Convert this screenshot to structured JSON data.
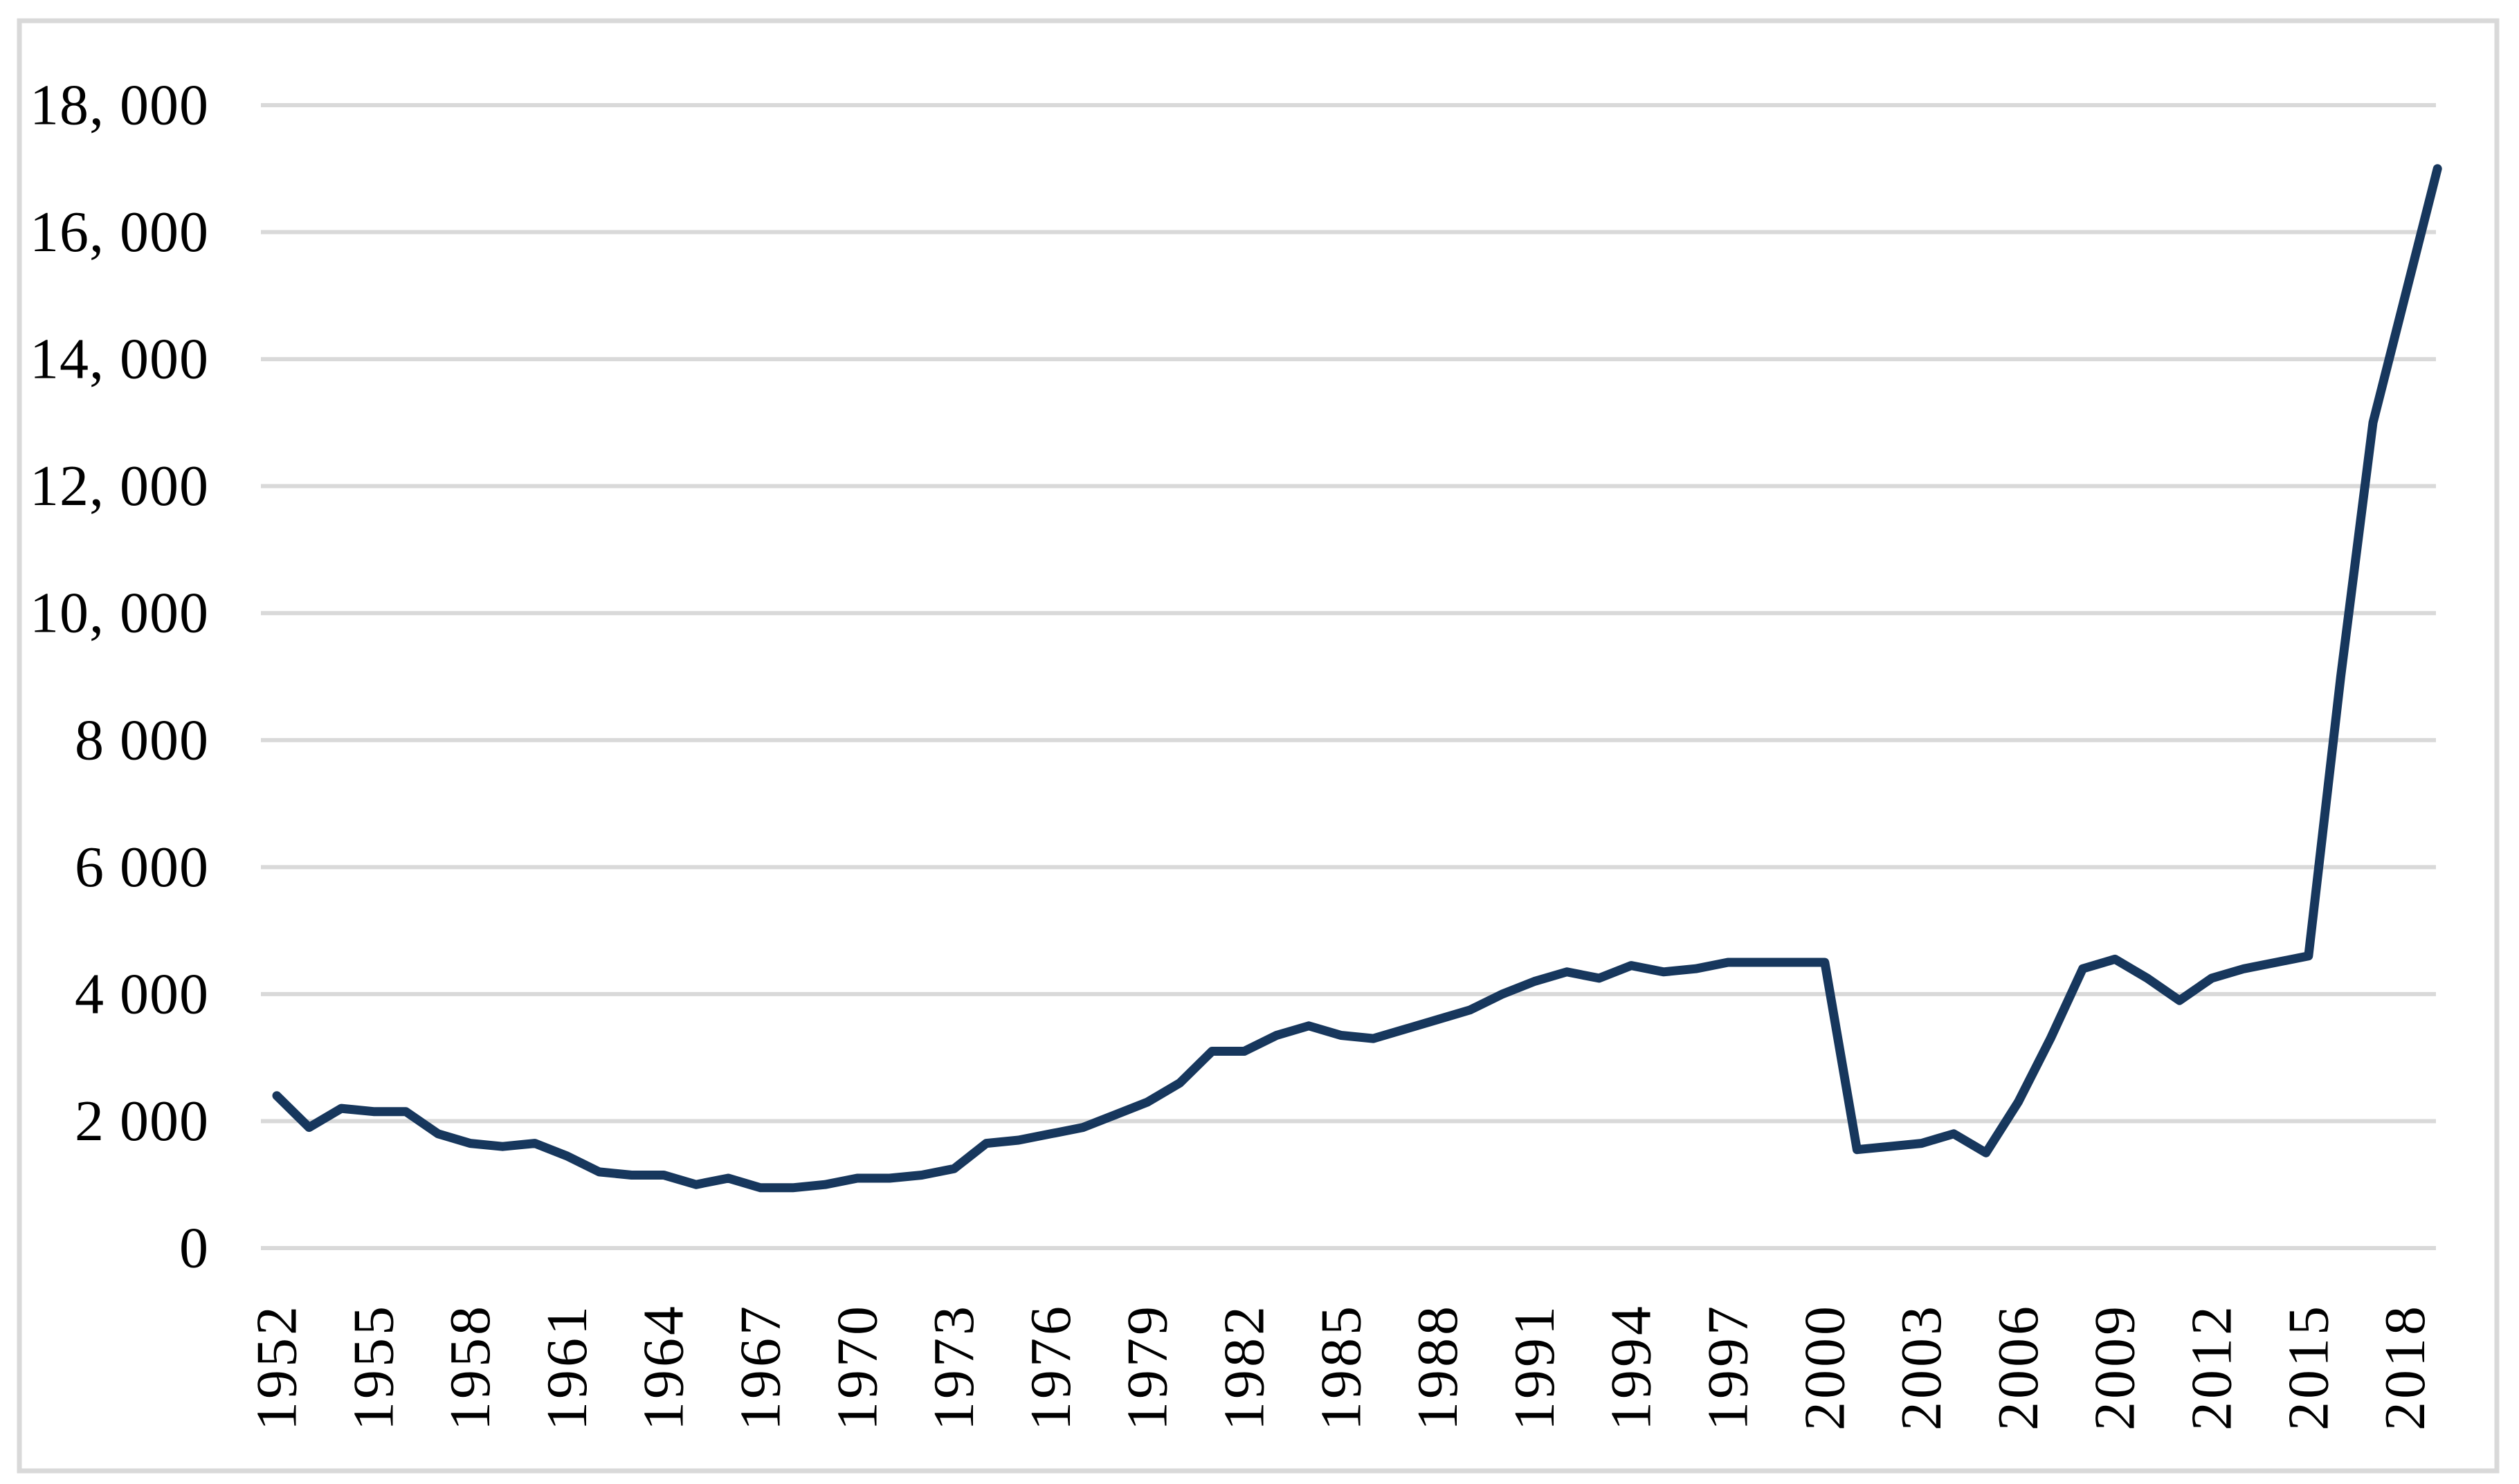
{
  "chart": {
    "background_color": "#ffffff",
    "frame_color": "#d9d9d9",
    "grid_color": "#d9d9d9",
    "line_color": "#17375d",
    "label_color": "#000000"
  },
  "chart_data": {
    "type": "line",
    "title": "",
    "xlabel": "",
    "ylabel": "",
    "legend": "none",
    "grid": "horizontal",
    "ylim": [
      0,
      18000
    ],
    "y_tick_values": [
      18000,
      16000,
      14000,
      12000,
      10000,
      8000,
      6000,
      4000,
      2000,
      0
    ],
    "y_tick_labels": [
      "18, 000",
      "16, 000",
      "14, 000",
      "12, 000",
      "10, 000",
      "8 000",
      "6 000",
      "4 000",
      "2 000",
      "0"
    ],
    "x_tick_years": [
      1952,
      1955,
      1958,
      1961,
      1964,
      1967,
      1970,
      1973,
      1976,
      1979,
      1982,
      1985,
      1988,
      1991,
      1994,
      1997,
      2000,
      2003,
      2006,
      2009,
      2012,
      2015,
      2018
    ],
    "x_tick_labels": [
      "1952",
      "1955",
      "1958",
      "1961",
      "1964",
      "1967",
      "1970",
      "1973",
      "1976",
      "1979",
      "1982",
      "1985",
      "1988",
      "1991",
      "1994",
      "1997",
      "2000",
      "2003",
      "2006",
      "2009",
      "2012",
      "2015",
      "2018"
    ],
    "x": [
      1952,
      1953,
      1954,
      1955,
      1956,
      1957,
      1958,
      1959,
      1960,
      1961,
      1962,
      1963,
      1964,
      1965,
      1966,
      1967,
      1968,
      1969,
      1970,
      1971,
      1972,
      1973,
      1974,
      1975,
      1976,
      1977,
      1978,
      1979,
      1980,
      1981,
      1982,
      1983,
      1984,
      1985,
      1986,
      1987,
      1988,
      1989,
      1990,
      1991,
      1992,
      1993,
      1994,
      1995,
      1996,
      1997,
      1998,
      1999,
      2000,
      2001,
      2002,
      2003,
      2004,
      2005,
      2006,
      2007,
      2008,
      2009,
      2010,
      2011,
      2012,
      2013,
      2014,
      2015,
      2016,
      2017,
      2018,
      2019
    ],
    "values": [
      2400,
      1900,
      2200,
      2150,
      2150,
      1800,
      1650,
      1600,
      1650,
      1450,
      1200,
      1150,
      1150,
      1000,
      1100,
      950,
      950,
      1000,
      1100,
      1100,
      1150,
      1250,
      1650,
      1700,
      1800,
      1900,
      2100,
      2300,
      2600,
      3100,
      3100,
      3350,
      3500,
      3350,
      3300,
      3450,
      3600,
      3750,
      4000,
      4200,
      4350,
      4250,
      4450,
      4350,
      4400,
      4500,
      4500,
      4500,
      4500,
      1550,
      1600,
      1650,
      1800,
      1500,
      2300,
      3300,
      4400,
      4550,
      4250,
      3900,
      4250,
      4400,
      4500,
      4600,
      9000,
      13000,
      15000,
      17000
    ]
  }
}
